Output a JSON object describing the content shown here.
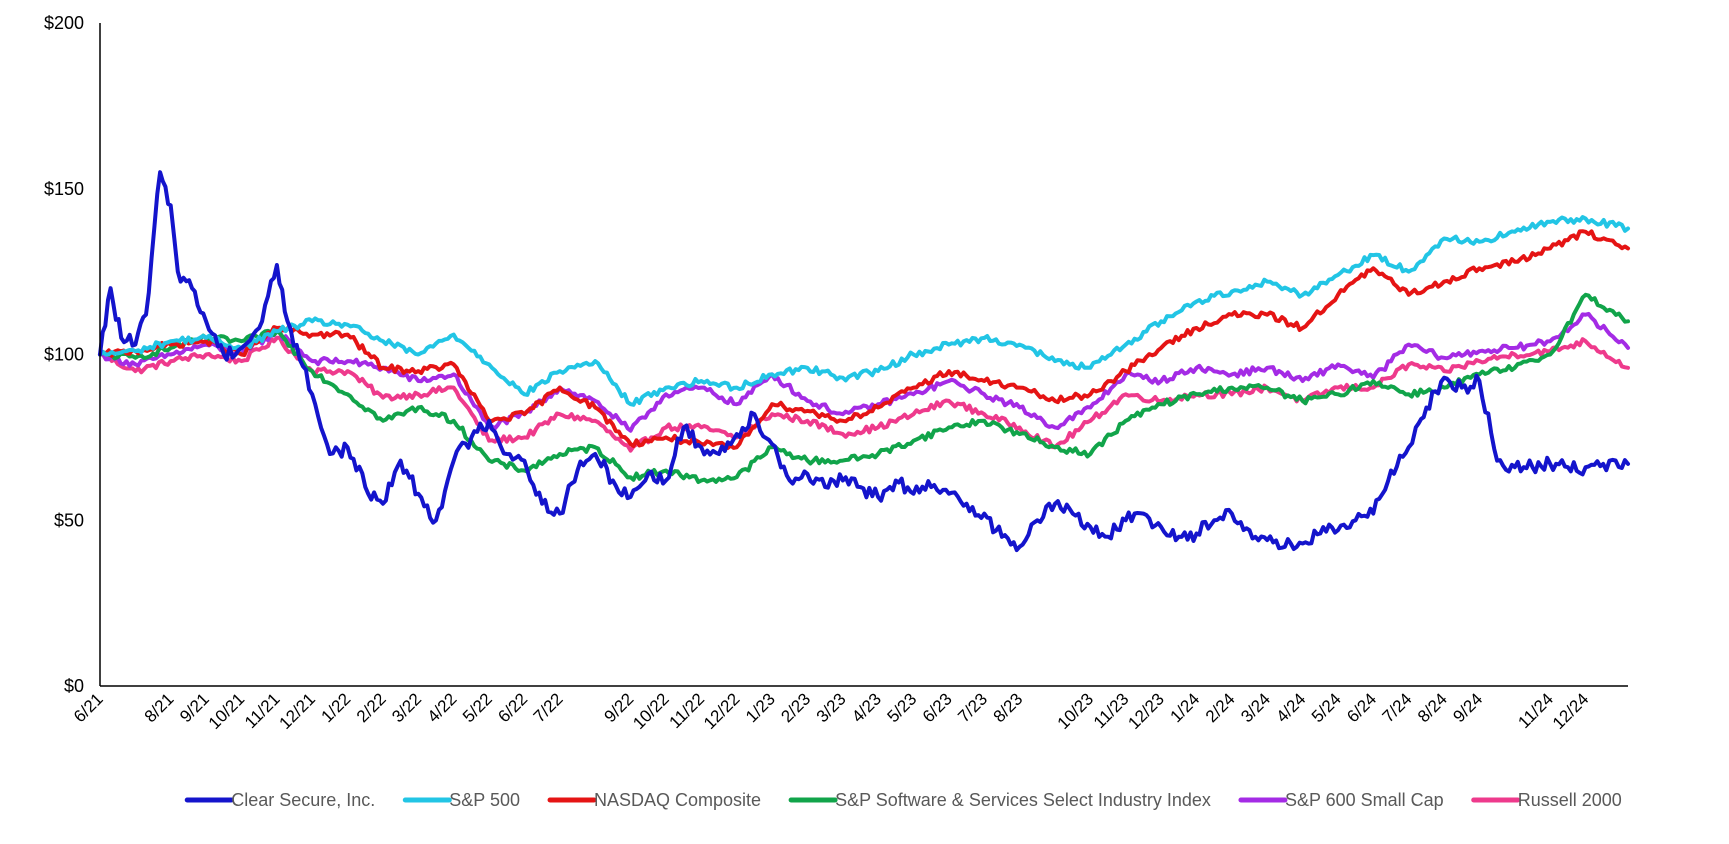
{
  "chart_data": {
    "type": "line",
    "title": "",
    "xlabel": "",
    "ylabel": "",
    "ylim": [
      0,
      200
    ],
    "y_ticks": [
      {
        "value": 0,
        "label": "$0"
      },
      {
        "value": 50,
        "label": "$50"
      },
      {
        "value": 100,
        "label": "$100"
      },
      {
        "value": 150,
        "label": "$150"
      },
      {
        "value": 200,
        "label": "$200"
      }
    ],
    "x_tick_labels": [
      "6/21",
      "8/21",
      "9/21",
      "10/21",
      "11/21",
      "12/21",
      "1/22",
      "2/22",
      "3/22",
      "4/22",
      "5/22",
      "6/22",
      "7/22",
      "9/22",
      "10/22",
      "11/22",
      "12/22",
      "1/23",
      "2/23",
      "3/23",
      "4/23",
      "5/23",
      "6/23",
      "7/23",
      "8/23",
      "10/23",
      "11/23",
      "12/23",
      "1/24",
      "2/24",
      "3/24",
      "4/24",
      "5/24",
      "6/24",
      "7/24",
      "8/24",
      "9/24",
      "11/24",
      "12/24"
    ],
    "x_month_index": [
      0,
      2,
      3,
      4,
      5,
      6,
      7,
      8,
      9,
      10,
      11,
      12,
      13,
      15,
      16,
      17,
      18,
      19,
      20,
      21,
      22,
      23,
      24,
      25,
      26,
      28,
      29,
      30,
      31,
      32,
      33,
      34,
      35,
      36,
      37,
      38,
      39,
      41,
      42
    ],
    "x_range_months": [
      0,
      43.2
    ],
    "x_units": "months since 6/21",
    "legend_position": "bottom",
    "series": [
      {
        "name": "Clear Secure, Inc.",
        "color": "#1414CC",
        "x": [
          0,
          0.3,
          0.6,
          1,
          1.3,
          1.7,
          2,
          2.2,
          2.6,
          3,
          3.5,
          4,
          4.5,
          5,
          5.3,
          6,
          6.5,
          7,
          7.5,
          8,
          8.5,
          9,
          9.5,
          10,
          10.5,
          11,
          11.5,
          12,
          12.5,
          13,
          13.5,
          14,
          14.5,
          15,
          15.5,
          16,
          16.5,
          17,
          17.5,
          18,
          18.5,
          19,
          19.5,
          20,
          20.5,
          21,
          21.5,
          22,
          22.5,
          23,
          23.5,
          24,
          24.5,
          25,
          25.5,
          26,
          26.5,
          27,
          27.5,
          28,
          28.5,
          29,
          29.5,
          30,
          30.5,
          31,
          31.5,
          32,
          32.5,
          33,
          33.5,
          34,
          34.5,
          35,
          35.5,
          36,
          36.5,
          37,
          37.2,
          37.5,
          38,
          38.5,
          39,
          39.5,
          40,
          40.5,
          41,
          41.5,
          42,
          42.5,
          43.2
        ],
        "values": [
          100,
          120,
          105,
          103,
          112,
          155,
          145,
          125,
          120,
          110,
          100,
          102,
          108,
          127,
          110,
          88,
          70,
          72,
          60,
          55,
          68,
          58,
          50,
          68,
          75,
          80,
          70,
          68,
          55,
          52,
          65,
          70,
          62,
          57,
          64,
          62,
          78,
          72,
          70,
          76,
          82,
          73,
          62,
          64,
          60,
          62,
          60,
          57,
          62,
          58,
          60,
          58,
          55,
          52,
          45,
          42,
          50,
          55,
          52,
          48,
          45,
          50,
          52,
          48,
          45,
          46,
          50,
          52,
          47,
          44,
          42,
          43,
          46,
          47,
          50,
          52,
          65,
          72,
          78,
          84,
          93,
          90,
          92,
          68,
          66,
          66,
          67,
          66,
          66,
          67,
          67
        ],
        "draw_order": 1
      },
      {
        "name": "S&P 500",
        "color": "#22C5E5",
        "x": [
          0,
          1,
          2,
          3,
          4,
          5,
          6,
          7,
          8,
          9,
          10,
          11,
          12,
          13,
          14,
          15,
          16,
          17,
          18,
          19,
          20,
          21,
          22,
          23,
          24,
          25,
          26,
          27,
          28,
          29,
          30,
          31,
          32,
          33,
          34,
          35,
          36,
          37,
          38,
          39,
          40,
          41,
          42,
          43.2
        ],
        "values": [
          100,
          101,
          104,
          105,
          102,
          107,
          110,
          109,
          104,
          100,
          106,
          97,
          88,
          95,
          98,
          85,
          90,
          92,
          90,
          94,
          96,
          93,
          95,
          100,
          103,
          105,
          103,
          98,
          96,
          103,
          110,
          116,
          119,
          122,
          118,
          124,
          130,
          125,
          135,
          134,
          137,
          140,
          141,
          138
        ],
        "draw_order": 2
      },
      {
        "name": "NASDAQ Composite",
        "color": "#E51414",
        "x": [
          0,
          1,
          2,
          3,
          4,
          5,
          6,
          7,
          8,
          9,
          10,
          11,
          12,
          13,
          14,
          15,
          16,
          17,
          18,
          19,
          20,
          21,
          22,
          23,
          24,
          25,
          26,
          27,
          28,
          29,
          30,
          31,
          32,
          33,
          34,
          35,
          36,
          37,
          38,
          39,
          40,
          41,
          42,
          43.2
        ],
        "values": [
          100,
          101,
          103,
          104,
          100,
          108,
          106,
          106,
          96,
          95,
          97,
          80,
          82,
          90,
          84,
          73,
          75,
          73,
          72,
          85,
          83,
          80,
          84,
          90,
          95,
          92,
          90,
          86,
          88,
          95,
          102,
          108,
          112,
          112,
          108,
          118,
          126,
          118,
          122,
          126,
          128,
          132,
          137,
          132
        ],
        "draw_order": 3
      },
      {
        "name": "S&P Software & Services Select Industry Index",
        "color": "#11A44A",
        "x": [
          0,
          1,
          2,
          3,
          4,
          5,
          6,
          7,
          8,
          9,
          10,
          11,
          12,
          13,
          14,
          15,
          16,
          17,
          18,
          19,
          20,
          21,
          22,
          23,
          24,
          25,
          26,
          27,
          28,
          29,
          30,
          31,
          32,
          33,
          34,
          35,
          36,
          37,
          38,
          39,
          40,
          41,
          42,
          43.2
        ],
        "values": [
          100,
          99,
          102,
          105,
          104,
          107,
          95,
          88,
          80,
          84,
          80,
          68,
          65,
          70,
          72,
          63,
          65,
          62,
          63,
          72,
          68,
          68,
          70,
          74,
          78,
          80,
          76,
          72,
          70,
          80,
          85,
          88,
          90,
          90,
          86,
          88,
          92,
          88,
          90,
          94,
          96,
          100,
          118,
          110
        ],
        "draw_order": 4
      },
      {
        "name": "S&P 600 Small Cap",
        "color": "#A42BE5",
        "x": [
          0,
          1,
          2,
          3,
          4,
          5,
          6,
          7,
          8,
          9,
          10,
          11,
          12,
          13,
          14,
          15,
          16,
          17,
          18,
          19,
          20,
          21,
          22,
          23,
          24,
          25,
          26,
          27,
          28,
          29,
          30,
          31,
          32,
          33,
          34,
          35,
          36,
          37,
          38,
          39,
          40,
          41,
          42,
          43.2
        ],
        "values": [
          100,
          97,
          100,
          103,
          100,
          107,
          98,
          98,
          96,
          92,
          94,
          78,
          82,
          90,
          86,
          77,
          88,
          90,
          85,
          94,
          86,
          82,
          85,
          88,
          92,
          88,
          84,
          78,
          84,
          94,
          92,
          96,
          94,
          96,
          92,
          97,
          93,
          103,
          99,
          101,
          102,
          104,
          112,
          102
        ],
        "draw_order": 5
      },
      {
        "name": "Russell 2000",
        "color": "#EE3A8C",
        "x": [
          0,
          1,
          2,
          3,
          4,
          5,
          6,
          7,
          8,
          9,
          10,
          11,
          12,
          13,
          14,
          15,
          16,
          17,
          18,
          19,
          20,
          21,
          22,
          23,
          24,
          25,
          26,
          27,
          28,
          29,
          30,
          31,
          32,
          33,
          34,
          35,
          36,
          37,
          38,
          39,
          40,
          41,
          42,
          43.2
        ],
        "values": [
          100,
          95,
          98,
          100,
          98,
          105,
          95,
          95,
          87,
          88,
          90,
          74,
          75,
          82,
          80,
          71,
          78,
          78,
          75,
          82,
          80,
          76,
          78,
          82,
          86,
          82,
          78,
          72,
          80,
          88,
          86,
          88,
          88,
          90,
          86,
          90,
          90,
          97,
          95,
          98,
          100,
          101,
          104,
          96
        ],
        "draw_order": 6
      }
    ]
  }
}
